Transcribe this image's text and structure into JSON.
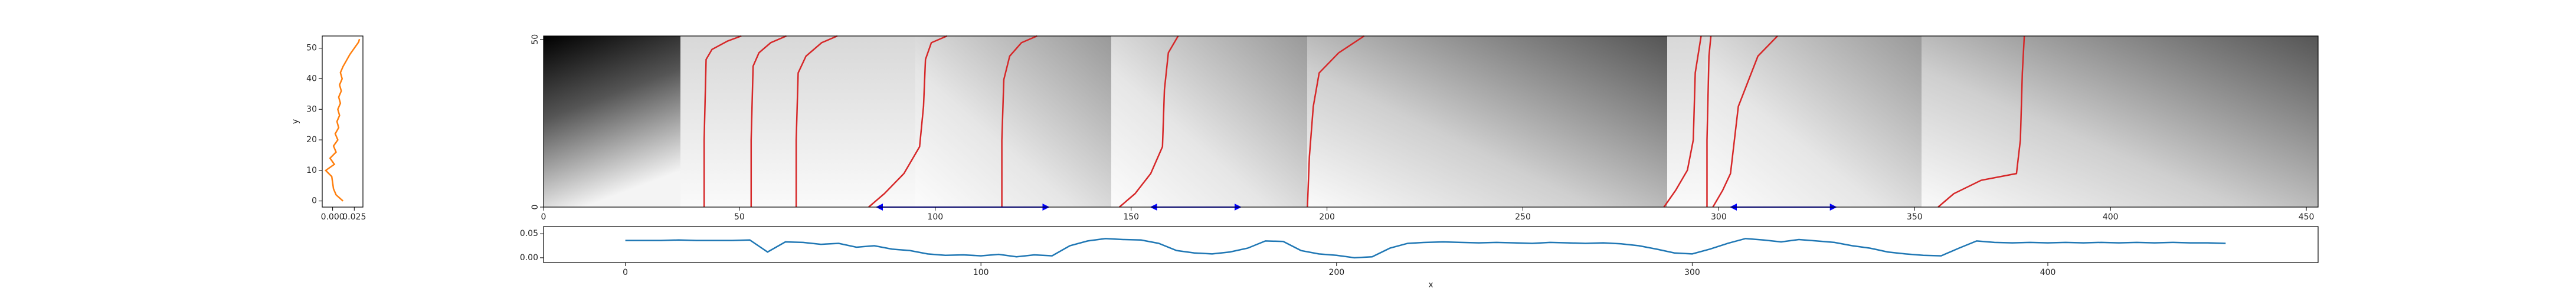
{
  "chart_data": [
    {
      "type": "line",
      "orientation": "vertical",
      "ylabel": "y",
      "xlim": [
        -0.012,
        0.035
      ],
      "ylim": [
        -2,
        54
      ],
      "xticks": [
        {
          "value": 0,
          "label": "0.000"
        },
        {
          "value": 0.025,
          "label": "0.025"
        }
      ],
      "yticks": [
        0,
        10,
        20,
        30,
        40,
        50
      ],
      "series": [
        {
          "color": "#ff7f0e",
          "x": [
            0.012,
            0.004,
            0.001,
            0.0,
            -0.001,
            -0.008,
            0.002,
            -0.003,
            0.004,
            0.001,
            0.006,
            0.003,
            0.007,
            0.005,
            0.008,
            0.006,
            0.009,
            0.007,
            0.01,
            0.008,
            0.011,
            0.009,
            0.012,
            0.016,
            0.02,
            0.025,
            0.03,
            0.031
          ],
          "y": [
            0,
            2,
            4,
            6,
            8,
            10,
            12,
            14,
            16,
            18,
            20,
            22,
            24,
            26,
            28,
            30,
            32,
            34,
            36,
            38,
            40,
            42,
            44,
            46,
            48,
            50,
            52,
            53
          ]
        }
      ]
    },
    {
      "type": "image",
      "xlim": [
        0,
        453
      ],
      "ylim": [
        0,
        51
      ],
      "xticks": [
        0,
        50,
        100,
        150,
        200,
        250,
        300,
        350,
        400,
        450
      ],
      "yticks": [
        0,
        50
      ],
      "lines": [
        {
          "color": "#d62728",
          "x": [
            41,
            41,
            41.5,
            43,
            47,
            50.5
          ],
          "y": [
            0,
            20,
            44,
            47,
            49.5,
            51
          ]
        },
        {
          "color": "#d62728",
          "x": [
            53,
            53,
            53.5,
            55,
            58,
            62
          ],
          "y": [
            0,
            20,
            42,
            46,
            49,
            51
          ]
        },
        {
          "color": "#d62728",
          "x": [
            64.5,
            64.5,
            65,
            67,
            71,
            75
          ],
          "y": [
            0,
            20,
            40,
            45,
            49,
            51
          ]
        },
        {
          "color": "#d62728",
          "x": [
            83,
            87,
            92,
            96,
            97,
            97.5,
            99,
            103
          ],
          "y": [
            0,
            4,
            10,
            18,
            30,
            44,
            49,
            51
          ]
        },
        {
          "color": "#d62728",
          "x": [
            117,
            117,
            117.5,
            119,
            122,
            126
          ],
          "y": [
            0,
            20,
            38,
            45,
            49,
            51
          ]
        },
        {
          "color": "#d62728",
          "x": [
            147,
            151,
            155,
            158,
            158.5,
            159.5,
            162
          ],
          "y": [
            0,
            4,
            10,
            18,
            35,
            46,
            51
          ]
        },
        {
          "color": "#d62728",
          "x": [
            195,
            195.5,
            196.5,
            198,
            203,
            209.5
          ],
          "y": [
            0,
            15,
            30,
            40,
            46,
            51
          ]
        },
        {
          "color": "#d62728",
          "x": [
            286,
            289,
            292,
            293.5,
            294,
            295.5
          ],
          "y": [
            0,
            5,
            11,
            20,
            40,
            51
          ]
        },
        {
          "color": "#d62728",
          "x": [
            297,
            297,
            297.5,
            298
          ],
          "y": [
            0,
            20,
            45,
            51
          ]
        },
        {
          "color": "#d62728",
          "x": [
            298.5,
            301,
            303,
            304,
            305,
            310,
            315
          ],
          "y": [
            0,
            5,
            10,
            20,
            30,
            45,
            51
          ]
        },
        {
          "color": "#d62728",
          "x": [
            356,
            360,
            367,
            376,
            377,
            377.5,
            378
          ],
          "y": [
            0,
            4,
            8,
            10,
            20,
            40,
            51
          ]
        }
      ],
      "arrows": [
        {
          "color": "#0000ff",
          "x": [
            85,
            129
          ],
          "y": 0
        },
        {
          "color": "#0000ff",
          "x": [
            155,
            178
          ],
          "y": 0
        },
        {
          "color": "#0000ff",
          "x": [
            303,
            330
          ],
          "y": 0
        }
      ]
    },
    {
      "type": "line",
      "xlabel": "x",
      "xlim": [
        -23,
        476
      ],
      "ylim": [
        -0.01,
        0.065
      ],
      "xticks": [
        0,
        100,
        200,
        300,
        400
      ],
      "yticks": [
        {
          "value": 0,
          "label": "0.00"
        },
        {
          "value": 0.05,
          "label": "0.05"
        }
      ],
      "x": [
        0,
        5,
        10,
        15,
        20,
        25,
        30,
        35,
        40,
        45,
        50,
        55,
        60,
        65,
        70,
        75,
        80,
        85,
        90,
        95,
        100,
        105,
        110,
        115,
        120,
        125,
        130,
        135,
        140,
        145,
        150,
        155,
        160,
        165,
        170,
        175,
        180,
        185,
        190,
        195,
        200,
        205,
        210,
        215,
        220,
        225,
        230,
        235,
        240,
        245,
        250,
        255,
        260,
        265,
        270,
        275,
        280,
        285,
        290,
        295,
        300,
        305,
        310,
        315,
        320,
        325,
        330,
        335,
        340,
        345,
        350,
        355,
        360,
        365,
        370,
        375,
        380,
        385,
        390,
        395,
        400,
        405,
        410,
        415,
        420,
        425,
        430,
        435,
        440,
        445,
        450
      ],
      "series": [
        {
          "color": "#1f77b4",
          "values": [
            0.036,
            0.036,
            0.036,
            0.037,
            0.036,
            0.036,
            0.036,
            0.037,
            0.012,
            0.033,
            0.032,
            0.028,
            0.03,
            0.022,
            0.025,
            0.018,
            0.015,
            0.008,
            0.005,
            0.006,
            0.004,
            0.007,
            0.002,
            0.006,
            0.004,
            0.025,
            0.035,
            0.04,
            0.038,
            0.037,
            0.03,
            0.015,
            0.01,
            0.008,
            0.012,
            0.02,
            0.035,
            0.034,
            0.015,
            0.008,
            0.005,
            0.0,
            0.002,
            0.02,
            0.03,
            0.032,
            0.033,
            0.032,
            0.031,
            0.032,
            0.031,
            0.03,
            0.032,
            0.031,
            0.03,
            0.031,
            0.029,
            0.025,
            0.018,
            0.01,
            0.008,
            0.018,
            0.03,
            0.04,
            0.037,
            0.033,
            0.038,
            0.035,
            0.032,
            0.025,
            0.02,
            0.012,
            0.008,
            0.005,
            0.004,
            0.02,
            0.035,
            0.032,
            0.031,
            0.032,
            0.031,
            0.032,
            0.031,
            0.032,
            0.031,
            0.032,
            0.031,
            0.032,
            0.031,
            0.031,
            0.03
          ]
        }
      ]
    }
  ]
}
